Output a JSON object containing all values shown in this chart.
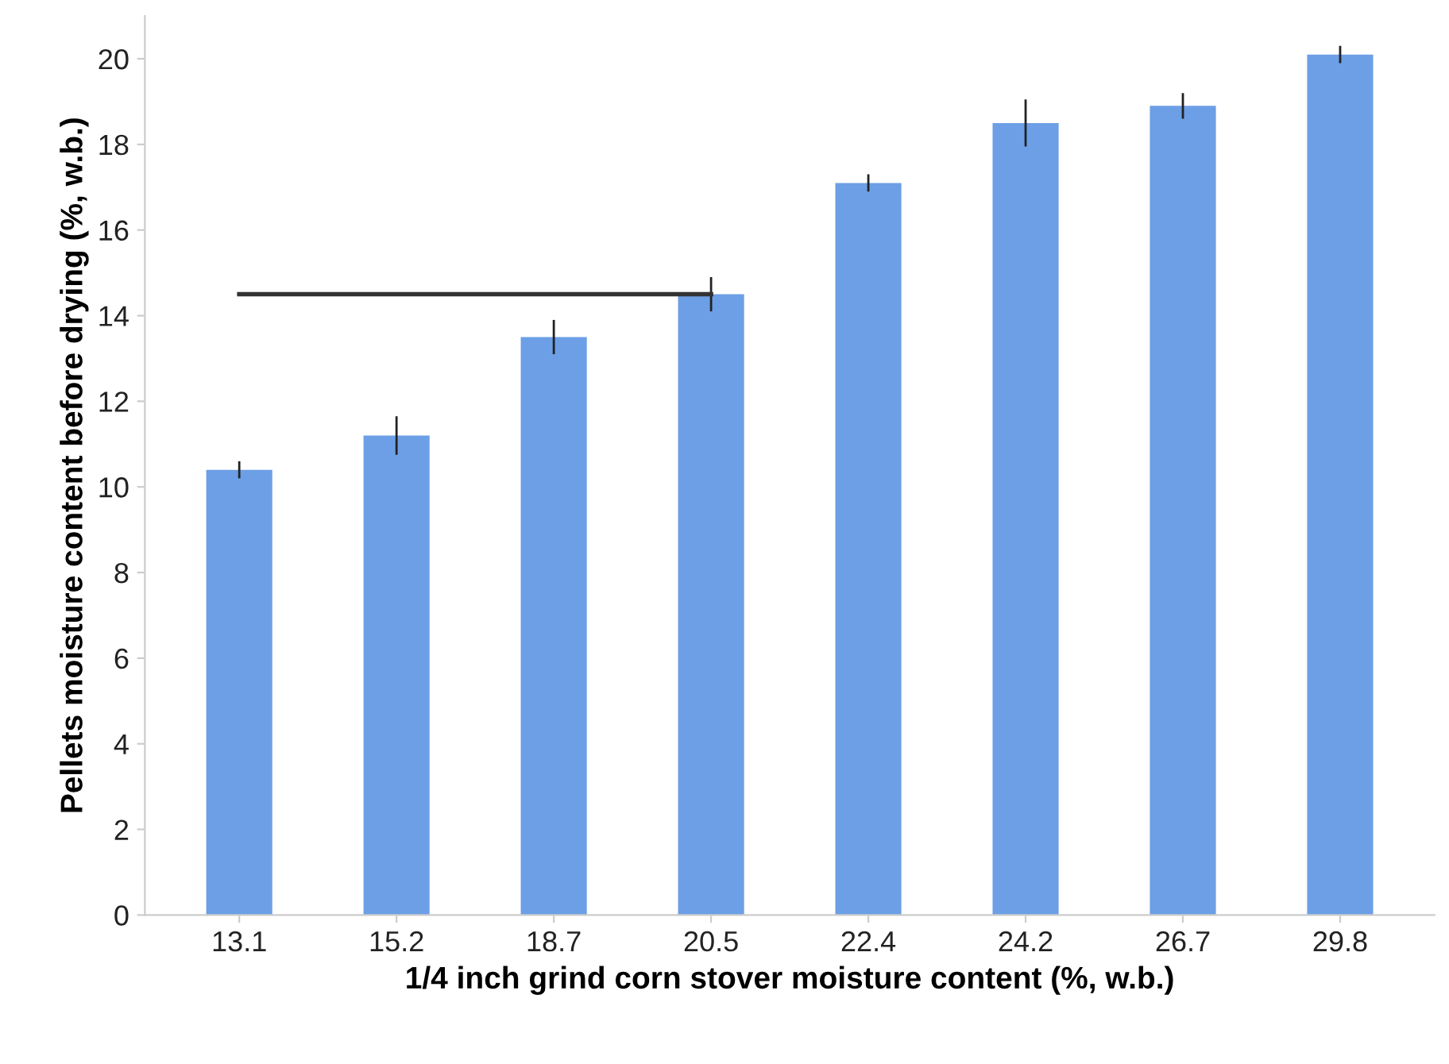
{
  "chart_data": {
    "type": "bar",
    "xlabel": "1/4 inch grind corn stover moisture content (%, w.b.)",
    "ylabel": "Pellets moisture content before drying (%, w.b.)",
    "categories": [
      "13.1",
      "15.2",
      "18.7",
      "20.5",
      "22.4",
      "24.2",
      "26.7",
      "29.8"
    ],
    "series": [
      {
        "color": "#6c9fe6",
        "values": [
          10.4,
          11.2,
          13.5,
          14.5,
          17.1,
          18.5,
          18.9,
          20.1
        ],
        "errors": [
          0.2,
          0.45,
          0.4,
          0.4,
          0.2,
          0.55,
          0.3,
          0.2
        ]
      },
      {
        "type": "line",
        "color": "#333333",
        "x": [
          "13.1",
          "20.5"
        ],
        "values": [
          14.5,
          14.5
        ]
      }
    ],
    "ylim": [
      0,
      21
    ],
    "yticks": [
      0,
      2,
      4,
      6,
      8,
      10,
      12,
      14,
      16,
      18,
      20
    ],
    "grid": false,
    "legend": false
  }
}
